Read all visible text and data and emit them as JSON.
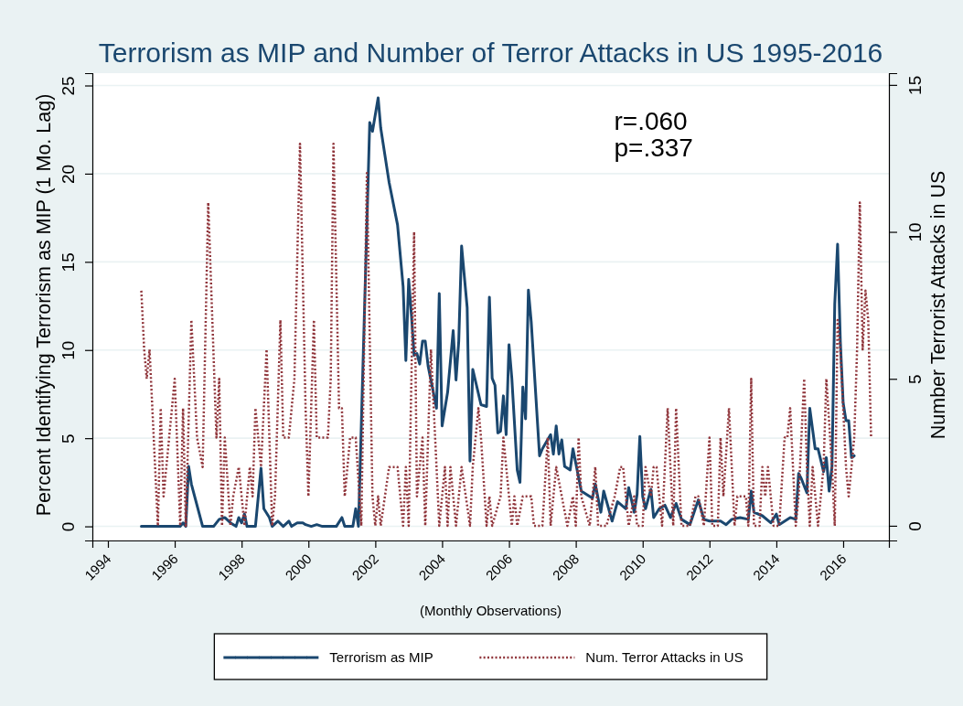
{
  "chart_data": {
    "type": "line",
    "title": "Terrorism as MIP and Number of Terror Attacks in US 1995-2016",
    "xlabel": "(Monthly Observations)",
    "ylabel": "Percent Identifying Terrorism as MIP (1 Mo. Lag)",
    "y2label": "Number Terrorist Attacks in US",
    "annotations": [
      "r=.060",
      "p=.337"
    ],
    "xlim": [
      "1993-07-15",
      "2017-05-15"
    ],
    "xticks": [
      "1994",
      "1996",
      "1998",
      "2000",
      "2002",
      "2004",
      "2006",
      "2008",
      "2010",
      "2012",
      "2014",
      "2016"
    ],
    "ylim": [
      -0.8,
      25.7
    ],
    "yticks": [
      0,
      5,
      10,
      15,
      20,
      25
    ],
    "y2lim": [
      -0.5,
      15.4
    ],
    "y2ticks": [
      0,
      5,
      10,
      15
    ],
    "grid": "y",
    "legend": "bottom",
    "series": [
      {
        "name": "Terrorism as MIP",
        "color": "#1a476f",
        "line_style": "solid",
        "x": [
          "1995-01",
          "1996-03",
          "1996-04",
          "1996-05",
          "1996-06",
          "1996-07",
          "1996-11",
          "1997-03",
          "1997-05",
          "1997-07",
          "1997-09",
          "1997-11",
          "1997-12",
          "1998-01",
          "1998-02",
          "1998-03",
          "1998-06",
          "1998-08",
          "1998-09",
          "1998-11",
          "1998-12",
          "1999-02",
          "1999-04",
          "1999-06",
          "1999-07",
          "1999-09",
          "1999-11",
          "1999-12",
          "2000-02",
          "2000-04",
          "2000-06",
          "2000-11",
          "2001-01",
          "2001-02",
          "2001-05",
          "2001-06",
          "2001-07",
          "2001-08",
          "2001-09",
          "2001-11",
          "2001-12",
          "2002-02",
          "2002-03",
          "2002-06",
          "2002-09",
          "2002-11",
          "2002-12",
          "2003-01",
          "2003-02",
          "2003-03",
          "2003-04",
          "2003-05",
          "2003-06",
          "2003-07",
          "2003-08",
          "2003-11",
          "2003-12",
          "2004-01",
          "2004-03",
          "2004-05",
          "2004-06",
          "2004-07",
          "2004-08",
          "2004-10",
          "2004-11",
          "2004-12",
          "2005-03",
          "2005-05",
          "2005-06",
          "2005-07",
          "2005-08",
          "2005-09",
          "2005-10",
          "2005-11",
          "2005-12",
          "2006-01",
          "2006-02",
          "2006-04",
          "2006-05",
          "2006-06",
          "2006-07",
          "2006-08",
          "2006-09",
          "2006-12",
          "2007-01",
          "2007-04",
          "2007-05",
          "2007-06",
          "2007-07",
          "2007-08",
          "2007-09",
          "2007-11",
          "2007-12",
          "2008-03",
          "2008-07",
          "2008-08",
          "2008-10",
          "2008-11",
          "2009-02",
          "2009-04",
          "2009-07",
          "2009-08",
          "2009-10",
          "2009-11",
          "2009-12",
          "2010-01",
          "2010-02",
          "2010-04",
          "2010-05",
          "2010-07",
          "2010-09",
          "2010-11",
          "2011-01",
          "2011-03",
          "2011-06",
          "2011-09",
          "2011-11",
          "2012-01",
          "2012-05",
          "2012-07",
          "2012-09",
          "2012-12",
          "2013-03",
          "2013-04",
          "2013-05",
          "2013-08",
          "2013-11",
          "2014-01",
          "2014-02",
          "2014-06",
          "2014-08",
          "2014-09",
          "2014-10",
          "2014-12",
          "2015-01",
          "2015-03",
          "2015-04",
          "2015-06",
          "2015-07",
          "2015-08",
          "2015-09",
          "2015-10",
          "2015-11",
          "2015-12",
          "2016-01",
          "2016-02",
          "2016-03",
          "2016-04",
          "2016-05"
        ],
        "values": [
          0,
          0,
          0.2,
          0,
          3.4,
          2.4,
          0,
          0,
          0.4,
          0.5,
          0.2,
          0,
          0.5,
          0.2,
          0.7,
          0,
          0,
          3.3,
          1.0,
          0.5,
          0,
          0.3,
          0,
          0.3,
          0,
          0.2,
          0.2,
          0.1,
          0,
          0.1,
          0,
          0,
          0.5,
          0,
          0,
          1.0,
          0,
          5.7,
          11.5,
          22.9,
          22.4,
          24.3,
          22.6,
          19.5,
          17.1,
          13.6,
          9.4,
          14.0,
          11.9,
          9.7,
          9.8,
          9.2,
          10.5,
          10.5,
          9.1,
          6.7,
          13.2,
          5.7,
          7.6,
          11.1,
          8.3,
          10.5,
          15.9,
          12.4,
          3.7,
          8.9,
          6.9,
          6.8,
          13.0,
          8.4,
          8.0,
          5.3,
          5.4,
          7.4,
          5.2,
          10.3,
          8.4,
          3.2,
          2.5,
          7.9,
          6.1,
          13.4,
          11.6,
          4.0,
          4.4,
          5.2,
          4.1,
          5.7,
          4.1,
          4.9,
          3.4,
          3.2,
          4.4,
          2.0,
          1.6,
          2.4,
          0.8,
          2.0,
          0.3,
          1.4,
          1.0,
          2.2,
          0.8,
          1.8,
          5.1,
          1.7,
          1.0,
          2.1,
          0.5,
          1.0,
          1.2,
          0.5,
          1.3,
          0.4,
          0.1,
          1.5,
          0.4,
          0.3,
          0.3,
          0.1,
          0.4,
          0.5,
          0.4,
          2.0,
          0.8,
          0.6,
          0.2,
          0.7,
          0.1,
          0.5,
          0.4,
          3.0,
          2.7,
          1.9,
          6.7,
          4.4,
          4.4,
          3.1,
          3.9,
          2.0,
          3.4,
          12.6,
          16.0,
          10.5,
          7.0,
          6.0,
          6.0,
          3.9,
          4.0
        ]
      },
      {
        "name": "Num. Terror Attacks in US",
        "color": "#90353b",
        "line_style": "dotted",
        "axis": "y2",
        "x": [
          "1995-01",
          "1995-02",
          "1995-03",
          "1995-04",
          "1995-07",
          "1995-08",
          "1995-09",
          "1995-11",
          "1996-01",
          "1996-03",
          "1996-04",
          "1996-05",
          "1996-07",
          "1996-09",
          "1996-11",
          "1997-01",
          "1997-04",
          "1997-05",
          "1997-06",
          "1997-07",
          "1997-09",
          "1997-10",
          "1997-12",
          "1998-01",
          "1998-02",
          "1998-04",
          "1998-05",
          "1998-06",
          "1998-08",
          "1998-10",
          "1998-12",
          "1999-01",
          "1999-03",
          "1999-04",
          "1999-06",
          "1999-08",
          "1999-10",
          "1999-12",
          "2000-01",
          "2000-03",
          "2000-04",
          "2000-06",
          "2000-08",
          "2000-09",
          "2000-10",
          "2000-12",
          "2001-01",
          "2001-02",
          "2001-04",
          "2001-06",
          "2001-08",
          "2001-10",
          "2001-12",
          "2002-01",
          "2002-02",
          "2002-03",
          "2002-06",
          "2002-09",
          "2002-10",
          "2002-11",
          "2002-12",
          "2003-01",
          "2003-03",
          "2003-04",
          "2003-05",
          "2003-06",
          "2003-07",
          "2003-08",
          "2003-09",
          "2003-11",
          "2003-12",
          "2004-02",
          "2004-03",
          "2004-04",
          "2004-06",
          "2004-08",
          "2004-11",
          "2004-12",
          "2005-02",
          "2005-03",
          "2005-05",
          "2005-06",
          "2005-07",
          "2005-10",
          "2005-11",
          "2006-01",
          "2006-02",
          "2006-03",
          "2006-04",
          "2006-06",
          "2006-09",
          "2006-10",
          "2007-01",
          "2007-03",
          "2007-04",
          "2007-06",
          "2007-08",
          "2007-10",
          "2007-12",
          "2008-01",
          "2008-02",
          "2008-03",
          "2008-06",
          "2008-08",
          "2008-09",
          "2008-12",
          "2009-03",
          "2009-05",
          "2009-06",
          "2009-08",
          "2009-10",
          "2009-11",
          "2010-01",
          "2010-02",
          "2010-04",
          "2010-05",
          "2010-06",
          "2010-07",
          "2010-08",
          "2010-10",
          "2010-12",
          "2011-01",
          "2011-03",
          "2011-06",
          "2011-08",
          "2011-09",
          "2011-11",
          "2012-01",
          "2012-02",
          "2012-04",
          "2012-05",
          "2012-06",
          "2012-08",
          "2012-10",
          "2012-11",
          "2013-01",
          "2013-02",
          "2013-03",
          "2013-04",
          "2013-05",
          "2013-07",
          "2013-08",
          "2013-09",
          "2013-10",
          "2013-12",
          "2014-02",
          "2014-04",
          "2014-05",
          "2014-06",
          "2014-08",
          "2014-09",
          "2014-11",
          "2014-12",
          "2015-01",
          "2015-02",
          "2015-04",
          "2015-06",
          "2015-07",
          "2015-09",
          "2015-10",
          "2015-11",
          "2015-12",
          "2016-02",
          "2016-03",
          "2016-04",
          "2016-05",
          "2016-06",
          "2016-07",
          "2016-08",
          "2016-09",
          "2016-10",
          "2016-11"
        ],
        "values": [
          8,
          6,
          5,
          6,
          0,
          4,
          1,
          3,
          5,
          0,
          4,
          0,
          7,
          3,
          2,
          11,
          3,
          5,
          0,
          3,
          0,
          1,
          2,
          1,
          0,
          2,
          1,
          4,
          2,
          6,
          0,
          1,
          7,
          3,
          3,
          5,
          13,
          4,
          1,
          7,
          3,
          3,
          3,
          5,
          13,
          4,
          4,
          1,
          3,
          3,
          0,
          12,
          1,
          0,
          1,
          0,
          2,
          2,
          1,
          0,
          2,
          0,
          10,
          1,
          2,
          3,
          0,
          3,
          6,
          2,
          0,
          2,
          0,
          2,
          0,
          2,
          0,
          2,
          4,
          3,
          0,
          1,
          0,
          1,
          3,
          1,
          0,
          1,
          0,
          1,
          1,
          0,
          0,
          3,
          0,
          2,
          1,
          0,
          1,
          0,
          3,
          1,
          0,
          2,
          0,
          0,
          1,
          2,
          2,
          0,
          1,
          0,
          0,
          2,
          1,
          2,
          2,
          1,
          0,
          4,
          0,
          4,
          0,
          0,
          1,
          1,
          0,
          3,
          0,
          0,
          3,
          1,
          4,
          0,
          1,
          1,
          1,
          0,
          5,
          0,
          0,
          2,
          1,
          2,
          0,
          0,
          3,
          3,
          4,
          0,
          1,
          5,
          2,
          0,
          2,
          0,
          2,
          5,
          2,
          0,
          7,
          6,
          2,
          1,
          2,
          3,
          6,
          11,
          6,
          8,
          7,
          3
        ]
      }
    ]
  }
}
